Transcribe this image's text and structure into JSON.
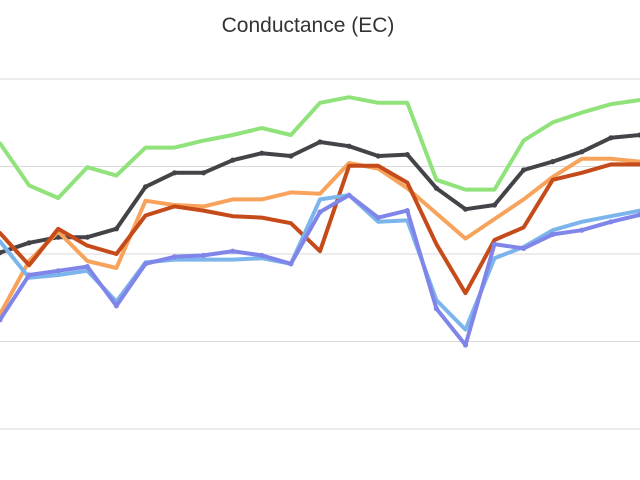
{
  "chart_data": {
    "type": "line",
    "title": "Conductance (EC)",
    "xlabel": "",
    "ylabel": "",
    "grid": true,
    "legend": "none",
    "x": [
      0,
      1,
      2,
      3,
      4,
      5,
      6,
      7,
      8,
      9,
      10,
      11,
      12,
      13,
      14,
      15,
      16,
      17,
      18,
      19,
      20,
      21,
      22
    ],
    "ylim": [
      0,
      5
    ],
    "series": [
      {
        "color": "#90e27a",
        "markers": false,
        "values": [
          4.08,
          3.48,
          3.3,
          3.74,
          3.62,
          4.02,
          4.02,
          4.12,
          4.2,
          4.3,
          4.2,
          4.66,
          4.74,
          4.66,
          4.66,
          3.56,
          3.42,
          3.42,
          4.12,
          4.38,
          4.52,
          4.64,
          4.7
        ]
      },
      {
        "color": "#434348",
        "markers": true,
        "values": [
          2.52,
          2.66,
          2.74,
          2.74,
          2.86,
          3.46,
          3.66,
          3.66,
          3.84,
          3.94,
          3.9,
          4.1,
          4.04,
          3.9,
          3.92,
          3.44,
          3.14,
          3.2,
          3.7,
          3.82,
          3.96,
          4.16,
          4.2
        ]
      },
      {
        "color": "#f7a35c",
        "markers": false,
        "values": [
          1.64,
          2.4,
          2.82,
          2.4,
          2.3,
          3.26,
          3.2,
          3.18,
          3.28,
          3.28,
          3.38,
          3.36,
          3.8,
          3.72,
          3.44,
          3.08,
          2.72,
          3.0,
          3.28,
          3.6,
          3.86,
          3.86,
          3.82
        ]
      },
      {
        "color": "#c64b1a",
        "markers": false,
        "values": [
          2.8,
          2.34,
          2.86,
          2.62,
          2.5,
          3.05,
          3.18,
          3.12,
          3.04,
          3.02,
          2.94,
          2.54,
          3.76,
          3.76,
          3.52,
          2.64,
          1.94,
          2.7,
          2.88,
          3.56,
          3.66,
          3.78,
          3.78
        ]
      },
      {
        "color": "#7cb5ec",
        "markers": false,
        "values": [
          2.68,
          2.16,
          2.2,
          2.26,
          1.82,
          2.38,
          2.42,
          2.42,
          2.42,
          2.44,
          2.36,
          3.28,
          3.34,
          2.96,
          2.98,
          1.84,
          1.42,
          2.44,
          2.6,
          2.84,
          2.96,
          3.04,
          3.12
        ]
      },
      {
        "color": "#8085e9",
        "markers": true,
        "values": [
          1.56,
          2.2,
          2.26,
          2.32,
          1.76,
          2.36,
          2.46,
          2.48,
          2.54,
          2.48,
          2.36,
          3.1,
          3.34,
          3.02,
          3.12,
          1.72,
          1.2,
          2.64,
          2.58,
          2.78,
          2.84,
          2.96,
          3.06
        ]
      }
    ]
  }
}
